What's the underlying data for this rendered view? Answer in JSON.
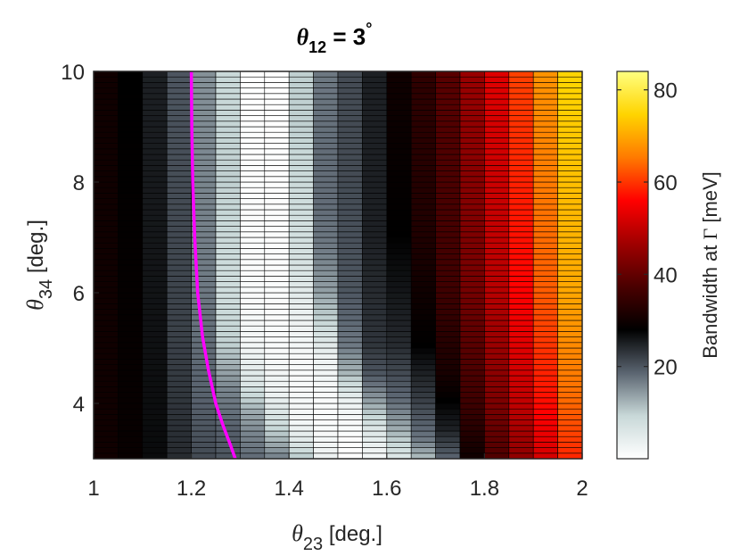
{
  "chart_data": {
    "type": "heatmap",
    "title": {
      "symbol": "θ",
      "sub": "12",
      "rest": " = 3",
      "deg": "°"
    },
    "xlabel": {
      "symbol": "θ",
      "sub": "23",
      "rest": " [deg.]"
    },
    "ylabel": {
      "symbol": "θ",
      "sub": "34",
      "rest": " [deg.]"
    },
    "colorbar_label": {
      "pre": "Bandwidth at ",
      "symbol": "Γ",
      "post": " [meV]"
    },
    "x_range": [
      1,
      2
    ],
    "y_range": [
      3,
      10
    ],
    "x_ticks": [
      "1",
      "1.2",
      "1.4",
      "1.6",
      "1.8",
      "2"
    ],
    "y_ticks": [
      "4",
      "6",
      "8",
      "10"
    ],
    "colorbar_ticks": [
      "20",
      "40",
      "60",
      "80"
    ],
    "color_range": [
      0,
      84
    ],
    "colormap": [
      "#ffffff",
      "#c8d8d8",
      "#5a6470",
      "#000000",
      "#4a0000",
      "#a00000",
      "#ff0000",
      "#ff7a00",
      "#ffd400",
      "#ffff80"
    ],
    "grid_x": [
      1.0,
      1.05,
      1.1,
      1.15,
      1.2,
      1.25,
      1.3,
      1.35,
      1.4,
      1.45,
      1.5,
      1.55,
      1.6,
      1.65,
      1.7,
      1.75,
      1.8,
      1.85,
      1.9,
      1.95,
      2.0
    ],
    "grid_y_count": 71,
    "grid_y_range": [
      3,
      10
    ],
    "columns": [
      {
        "x": 1.0,
        "profile": [
          [
            3,
            30
          ],
          [
            10,
            30
          ]
        ]
      },
      {
        "x": 1.05,
        "profile": [
          [
            3,
            29
          ],
          [
            10,
            28
          ]
        ]
      },
      {
        "x": 1.1,
        "profile": [
          [
            3,
            27
          ],
          [
            10,
            25
          ]
        ]
      },
      {
        "x": 1.15,
        "profile": [
          [
            3,
            24
          ],
          [
            5,
            22
          ],
          [
            10,
            20
          ]
        ]
      },
      {
        "x": 1.2,
        "profile": [
          [
            3,
            21
          ],
          [
            4,
            19
          ],
          [
            6,
            17
          ],
          [
            10,
            15
          ]
        ]
      },
      {
        "x": 1.25,
        "profile": [
          [
            3,
            20
          ],
          [
            3.5,
            19
          ],
          [
            4.2,
            16
          ],
          [
            5,
            10
          ],
          [
            6,
            8
          ],
          [
            8,
            10
          ],
          [
            10,
            9
          ]
        ]
      },
      {
        "x": 1.3,
        "profile": [
          [
            3,
            18
          ],
          [
            3.4,
            16
          ],
          [
            3.8,
            13
          ],
          [
            4.3,
            6
          ],
          [
            5,
            2
          ],
          [
            6,
            1
          ],
          [
            10,
            0
          ]
        ]
      },
      {
        "x": 1.35,
        "profile": [
          [
            3,
            16
          ],
          [
            3.3,
            12
          ],
          [
            3.6,
            8
          ],
          [
            4.1,
            3
          ],
          [
            5,
            1
          ],
          [
            10,
            0
          ]
        ]
      },
      {
        "x": 1.4,
        "profile": [
          [
            3,
            10
          ],
          [
            3.3,
            5
          ],
          [
            3.6,
            2
          ],
          [
            4.5,
            1
          ],
          [
            5.5,
            3
          ],
          [
            6.5,
            7
          ],
          [
            7.5,
            8
          ],
          [
            9,
            10
          ],
          [
            10,
            10
          ]
        ]
      },
      {
        "x": 1.45,
        "profile": [
          [
            3,
            3
          ],
          [
            3.5,
            1
          ],
          [
            4,
            1
          ],
          [
            4.8,
            3
          ],
          [
            5.5,
            10
          ],
          [
            6,
            14
          ],
          [
            6.8,
            17
          ],
          [
            7.5,
            18
          ],
          [
            8.5,
            18
          ],
          [
            10,
            17
          ]
        ]
      },
      {
        "x": 1.5,
        "profile": [
          [
            3,
            0
          ],
          [
            3.5,
            1
          ],
          [
            4,
            3
          ],
          [
            4.5,
            12
          ],
          [
            5,
            17
          ],
          [
            6,
            20
          ],
          [
            8,
            21
          ],
          [
            10,
            21
          ]
        ]
      },
      {
        "x": 1.55,
        "profile": [
          [
            3,
            2
          ],
          [
            3.5,
            6
          ],
          [
            4,
            14
          ],
          [
            4.5,
            20
          ],
          [
            5,
            23
          ],
          [
            7,
            25
          ],
          [
            10,
            25
          ]
        ]
      },
      {
        "x": 1.6,
        "profile": [
          [
            3,
            6
          ],
          [
            3.5,
            13
          ],
          [
            4,
            18
          ],
          [
            5,
            24
          ],
          [
            7,
            28
          ],
          [
            10,
            30
          ]
        ]
      },
      {
        "x": 1.65,
        "profile": [
          [
            3,
            12
          ],
          [
            3.3,
            17
          ],
          [
            4,
            22
          ],
          [
            5,
            28
          ],
          [
            7,
            32
          ],
          [
            10,
            34
          ]
        ]
      },
      {
        "x": 1.7,
        "profile": [
          [
            3,
            19
          ],
          [
            3.5,
            25
          ],
          [
            4.5,
            31
          ],
          [
            6,
            36
          ],
          [
            10,
            39
          ]
        ]
      },
      {
        "x": 1.75,
        "profile": [
          [
            3,
            30
          ],
          [
            4,
            36
          ],
          [
            6,
            42
          ],
          [
            10,
            46
          ]
        ]
      },
      {
        "x": 1.8,
        "profile": [
          [
            3,
            38
          ],
          [
            4,
            43
          ],
          [
            6,
            49
          ],
          [
            10,
            53
          ]
        ]
      },
      {
        "x": 1.85,
        "profile": [
          [
            3,
            45
          ],
          [
            4,
            50
          ],
          [
            6,
            56
          ],
          [
            10,
            61
          ]
        ]
      },
      {
        "x": 1.9,
        "profile": [
          [
            3,
            52
          ],
          [
            4,
            57
          ],
          [
            6,
            63
          ],
          [
            10,
            68
          ]
        ]
      },
      {
        "x": 1.95,
        "profile": [
          [
            3,
            59
          ],
          [
            4,
            64
          ],
          [
            6,
            70
          ],
          [
            10,
            75
          ]
        ]
      },
      {
        "x": 2.0,
        "profile": [
          [
            3,
            65
          ],
          [
            4,
            70
          ],
          [
            6,
            77
          ],
          [
            10,
            82
          ]
        ]
      }
    ],
    "curve": {
      "color": "#ff00ff",
      "points": [
        [
          1.2,
          10
        ],
        [
          1.201,
          9
        ],
        [
          1.203,
          8
        ],
        [
          1.207,
          7
        ],
        [
          1.213,
          6
        ],
        [
          1.223,
          5.2
        ],
        [
          1.235,
          4.6
        ],
        [
          1.25,
          4.0
        ],
        [
          1.265,
          3.6
        ],
        [
          1.28,
          3.25
        ],
        [
          1.29,
          3.0
        ]
      ]
    },
    "grid": true
  }
}
